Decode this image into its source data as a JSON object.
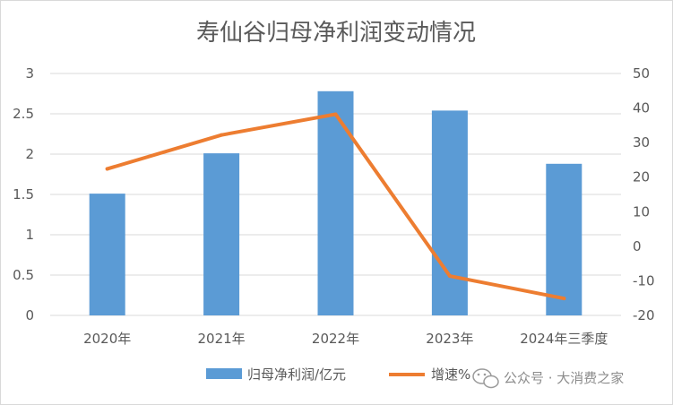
{
  "chart_data": {
    "type": "bar+line",
    "title": "寿仙谷归母净利润变动情况",
    "categories": [
      "2020年",
      "2021年",
      "2022年",
      "2023年",
      "2024年三季度"
    ],
    "series": [
      {
        "name": "归母净利润/亿元",
        "type": "bar",
        "axis": "left",
        "color": "#5b9bd5",
        "values": [
          1.51,
          2.01,
          2.78,
          2.54,
          1.88
        ]
      },
      {
        "name": "增速%",
        "type": "line",
        "axis": "right",
        "color": "#ed7d31",
        "values": [
          22.4,
          32.2,
          38.2,
          -8.6,
          -15.1
        ]
      }
    ],
    "y_left": {
      "min": 0,
      "max": 3,
      "ticks": [
        "0",
        "0.5",
        "1",
        "1.5",
        "2",
        "2.5",
        "3"
      ]
    },
    "y_right": {
      "min": -20,
      "max": 50,
      "ticks": [
        "-20",
        "-10",
        "0",
        "10",
        "20",
        "30",
        "40",
        "50"
      ]
    },
    "grid": "horizontal",
    "legend_position": "bottom"
  },
  "watermark": {
    "text": "公众号 · 大消费之家",
    "icon": "wechat-icon"
  }
}
